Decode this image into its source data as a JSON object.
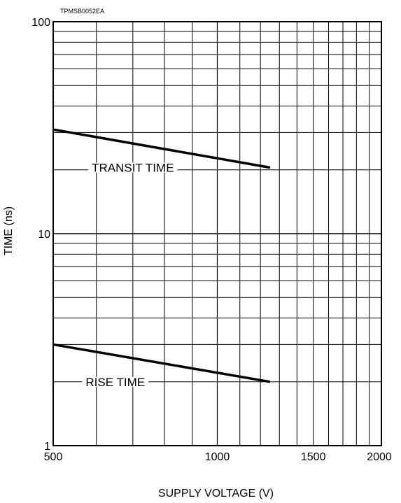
{
  "chart_data": {
    "type": "line",
    "title": "",
    "code": "TPMSB0052EA",
    "xlabel": "SUPPLY VOLTAGE (V)",
    "ylabel": "TIME (ns)",
    "xscale": "log",
    "yscale": "log",
    "xlim": [
      500,
      2000
    ],
    "ylim": [
      1,
      100
    ],
    "grid": true,
    "legend": "none",
    "x_ticks": [
      500,
      1000,
      1500,
      2000
    ],
    "x_tick_labels": [
      "500",
      "1000",
      "1500",
      "2000"
    ],
    "y_ticks": [
      1,
      10,
      100
    ],
    "y_tick_labels": [
      "1",
      "10",
      "100"
    ],
    "series": [
      {
        "name": "TRANSIT TIME",
        "x": [
          500,
          1250
        ],
        "y": [
          31,
          20.5
        ],
        "label_x": 700,
        "label_y": 20.5
      },
      {
        "name": "RISE TIME",
        "x": [
          500,
          1250
        ],
        "y": [
          3,
          2
        ],
        "label_x": 650,
        "label_y": 2
      }
    ],
    "colors": {
      "line": "#000000",
      "grid": "#000000",
      "background": "#ffffff"
    }
  }
}
